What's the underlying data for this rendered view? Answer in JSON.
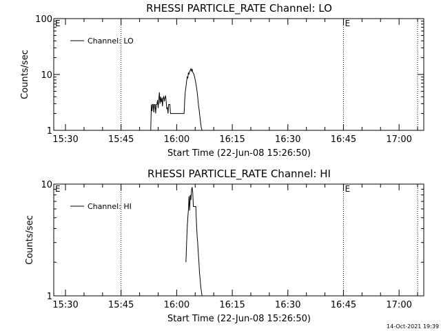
{
  "footer_timestamp": "14-Oct-2021 19:39",
  "chart_data": [
    {
      "type": "line",
      "title": "RHESSI PARTICLE_RATE Channel: LO",
      "xlabel": "Start Time (22-Jun-08 15:26:50)",
      "ylabel": "Counts/sec",
      "y_scale": "log",
      "xlim": [
        "15:26:50",
        "17:06:40"
      ],
      "ylim": [
        1,
        100
      ],
      "x_ticks": [
        "15:30",
        "15:45",
        "16:00",
        "16:15",
        "16:30",
        "16:45",
        "17:00"
      ],
      "y_ticks": [
        {
          "value": 1,
          "label": "1"
        },
        {
          "value": 10,
          "label": "10"
        },
        {
          "value": 100,
          "label": "100"
        }
      ],
      "vertical_markers": [
        {
          "time": "15:45:00",
          "label": ""
        },
        {
          "time": "16:45:00",
          "label": "E"
        },
        {
          "time": "17:05:00",
          "label": ""
        }
      ],
      "left_edge_label": "E",
      "legend": {
        "position": "top-left",
        "entries": [
          "Channel: LO"
        ]
      },
      "series": [
        {
          "name": "Channel: LO",
          "x": [
            "15:53:00",
            "15:53:10",
            "15:53:20",
            "15:53:30",
            "15:53:40",
            "15:53:50",
            "15:54:00",
            "15:54:10",
            "15:54:20",
            "15:54:30",
            "15:54:40",
            "15:54:50",
            "15:55:00",
            "15:55:10",
            "15:55:20",
            "15:55:30",
            "15:55:40",
            "15:55:50",
            "15:56:00",
            "15:56:10",
            "15:56:20",
            "15:56:30",
            "15:56:40",
            "15:56:50",
            "15:57:00",
            "15:57:10",
            "15:57:20",
            "15:57:30",
            "15:57:40",
            "15:57:50",
            "15:58:00",
            "15:58:10",
            "15:58:20",
            "15:58:30",
            "15:58:40",
            "15:58:50",
            "15:59:00",
            "15:59:30",
            "16:00:00",
            "16:00:30",
            "16:01:00",
            "16:01:30",
            "16:02:00",
            "16:02:10",
            "16:02:20",
            "16:02:30",
            "16:02:40",
            "16:02:50",
            "16:03:00",
            "16:03:10",
            "16:03:20",
            "16:03:30",
            "16:03:40",
            "16:03:50",
            "16:04:00",
            "16:04:10",
            "16:04:20",
            "16:04:30",
            "16:04:40",
            "16:04:50",
            "16:05:00",
            "16:05:10",
            "16:05:20",
            "16:05:30",
            "16:05:40",
            "16:05:50",
            "16:06:00",
            "16:06:10",
            "16:06:20",
            "16:06:30",
            "16:06:40",
            "16:06:50",
            "16:07:00",
            "16:07:10",
            "16:07:20"
          ],
          "y": [
            1.0,
            2.9,
            2.2,
            2.9,
            2.9,
            2.1,
            2.9,
            2.9,
            2.0,
            2.9,
            2.9,
            3.5,
            2.5,
            3.5,
            4.8,
            3.0,
            4.0,
            3.2,
            3.8,
            2.7,
            3.8,
            4.0,
            3.3,
            3.8,
            4.2,
            3.3,
            2.4,
            2.6,
            2.0,
            2.9,
            2.9,
            2.9,
            2.0,
            2.0,
            2.0,
            2.0,
            2.0,
            2.0,
            2.0,
            2.0,
            2.0,
            2.0,
            2.0,
            3.5,
            5.0,
            6.0,
            7.5,
            9.0,
            8.7,
            10.8,
            10.0,
            11.5,
            11.8,
            12.6,
            11.5,
            12.6,
            11.0,
            10.5,
            10.0,
            9.0,
            8.0,
            7.0,
            6.0,
            5.0,
            4.0,
            3.0,
            2.5,
            2.0,
            1.6,
            1.3,
            1.1,
            1.0,
            1.0,
            1.0,
            1.0
          ]
        }
      ]
    },
    {
      "type": "line",
      "title": "RHESSI PARTICLE_RATE Channel: HI",
      "xlabel": "Start Time (22-Jun-08 15:26:50)",
      "ylabel": "Counts/sec",
      "y_scale": "log",
      "xlim": [
        "15:26:50",
        "17:06:40"
      ],
      "ylim": [
        1,
        10
      ],
      "x_ticks": [
        "15:30",
        "15:45",
        "16:00",
        "16:15",
        "16:30",
        "16:45",
        "17:00"
      ],
      "y_ticks": [
        {
          "value": 1,
          "label": "1"
        },
        {
          "value": 10,
          "label": "10"
        }
      ],
      "vertical_markers": [
        {
          "time": "15:45:00",
          "label": ""
        },
        {
          "time": "16:45:00",
          "label": "E"
        },
        {
          "time": "17:05:00",
          "label": ""
        }
      ],
      "left_edge_label": "E",
      "legend": {
        "position": "top-left",
        "entries": [
          "Channel: HI"
        ]
      },
      "series": [
        {
          "name": "Channel: HI",
          "x": [
            "16:02:30",
            "16:02:40",
            "16:02:50",
            "16:03:00",
            "16:03:10",
            "16:03:20",
            "16:03:30",
            "16:03:40",
            "16:03:50",
            "16:04:00",
            "16:04:10",
            "16:04:20",
            "16:04:30",
            "16:04:40",
            "16:04:50",
            "16:05:00",
            "16:05:10",
            "16:05:20",
            "16:05:30",
            "16:05:40",
            "16:05:50",
            "16:06:00",
            "16:06:10",
            "16:06:20",
            "16:06:30",
            "16:06:40",
            "16:06:50",
            "16:07:00",
            "16:07:10"
          ],
          "y": [
            2.0,
            2.9,
            4.0,
            5.0,
            5.9,
            7.8,
            5.8,
            8.0,
            7.2,
            8.8,
            9.4,
            8.4,
            6.3,
            6.3,
            6.3,
            6.3,
            6.3,
            4.5,
            3.5,
            3.0,
            2.4,
            2.0,
            1.6,
            1.4,
            1.2,
            1.1,
            1.0,
            1.0,
            1.0
          ]
        }
      ]
    }
  ]
}
